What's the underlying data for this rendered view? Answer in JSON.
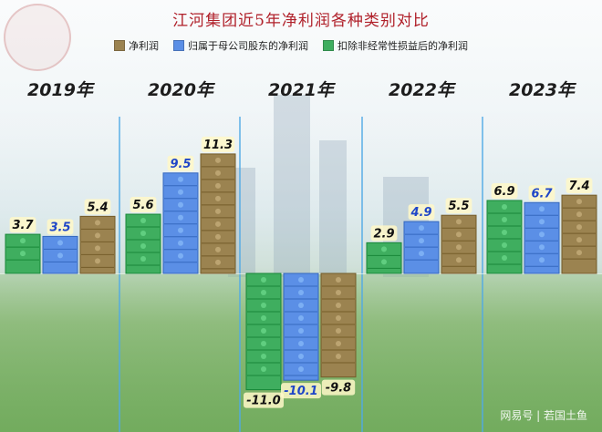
{
  "title": "江河集团近5年净利润各种类别对比",
  "watermark": "网易号 | 若国土鱼",
  "legend": [
    {
      "label": "净利润",
      "color": "#9b8350"
    },
    {
      "label": "归属于母公司股东的净利润",
      "color": "#5b8fe6"
    },
    {
      "label": "扣除非经常性损益后的净利润",
      "color": "#3fae5f"
    }
  ],
  "chart_data": {
    "type": "bar",
    "title": "江河集团近5年净利润各种类别对比",
    "categories": [
      "2019年",
      "2020年",
      "2021年",
      "2022年",
      "2023年"
    ],
    "series": [
      {
        "name": "扣除非经常性损益后的净利润",
        "values": [
          3.7,
          5.6,
          -11.0,
          2.9,
          6.9
        ],
        "labels": [
          "3.7",
          "5.6",
          "-11.0",
          "2.9",
          "6.9"
        ],
        "color": "#3fae5f"
      },
      {
        "name": "归属于母公司股东的净利润",
        "values": [
          3.5,
          9.5,
          -10.1,
          4.9,
          6.7
        ],
        "labels": [
          "3.5",
          "9.5",
          "-10.1",
          "4.9",
          "6.7"
        ],
        "color": "#5b8fe6"
      },
      {
        "name": "净利润",
        "values": [
          5.4,
          11.3,
          -9.8,
          5.5,
          7.4
        ],
        "labels": [
          "5.4",
          "11.3",
          "-9.8",
          "5.5",
          "7.4"
        ],
        "color": "#9b8350"
      }
    ],
    "xlabel": "",
    "ylabel": "",
    "grid": false,
    "legend_position": "top"
  }
}
